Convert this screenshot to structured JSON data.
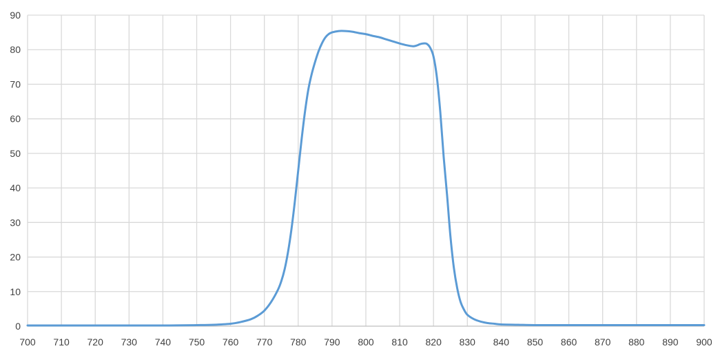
{
  "chart_data": {
    "type": "line",
    "title": "",
    "xlabel": "",
    "ylabel": "",
    "xlim": [
      700,
      900
    ],
    "ylim": [
      0,
      90
    ],
    "x_ticks": [
      700,
      710,
      720,
      730,
      740,
      750,
      760,
      770,
      780,
      790,
      800,
      810,
      820,
      830,
      840,
      850,
      860,
      870,
      880,
      890,
      900
    ],
    "y_ticks": [
      0,
      10,
      20,
      30,
      40,
      50,
      60,
      70,
      80,
      90
    ],
    "grid": true,
    "legend": "none",
    "series_color": "#5b9bd5",
    "series": [
      {
        "x": [
          700,
          720,
          740,
          750,
          755,
          760,
          763,
          766,
          768,
          770,
          772,
          774,
          775,
          776,
          777,
          778,
          779,
          780,
          781,
          782,
          783,
          784,
          785,
          786,
          787,
          788,
          789,
          790,
          792,
          794,
          796,
          798,
          800,
          802,
          804,
          806,
          808,
          810,
          812,
          814,
          815,
          816,
          817,
          818,
          819,
          820,
          821,
          822,
          823,
          824,
          825,
          826,
          827,
          828,
          829,
          830,
          832,
          834,
          836,
          838,
          840,
          845,
          850,
          860,
          880,
          900
        ],
        "y": [
          0.2,
          0.2,
          0.2,
          0.3,
          0.4,
          0.7,
          1.2,
          2.0,
          3.0,
          4.5,
          7.0,
          10.5,
          13.0,
          16.5,
          21.5,
          28.0,
          36.0,
          45.0,
          54.0,
          62.0,
          68.5,
          73.0,
          76.5,
          79.5,
          81.8,
          83.5,
          84.5,
          85.0,
          85.4,
          85.4,
          85.2,
          84.8,
          84.5,
          84.0,
          83.6,
          83.0,
          82.4,
          81.8,
          81.3,
          81.0,
          81.2,
          81.6,
          81.8,
          81.7,
          80.6,
          78.0,
          72.0,
          62.0,
          49.0,
          38.0,
          26.0,
          17.0,
          11.0,
          7.0,
          4.8,
          3.3,
          2.0,
          1.3,
          0.9,
          0.7,
          0.5,
          0.4,
          0.3,
          0.3,
          0.3,
          0.3
        ]
      }
    ]
  }
}
